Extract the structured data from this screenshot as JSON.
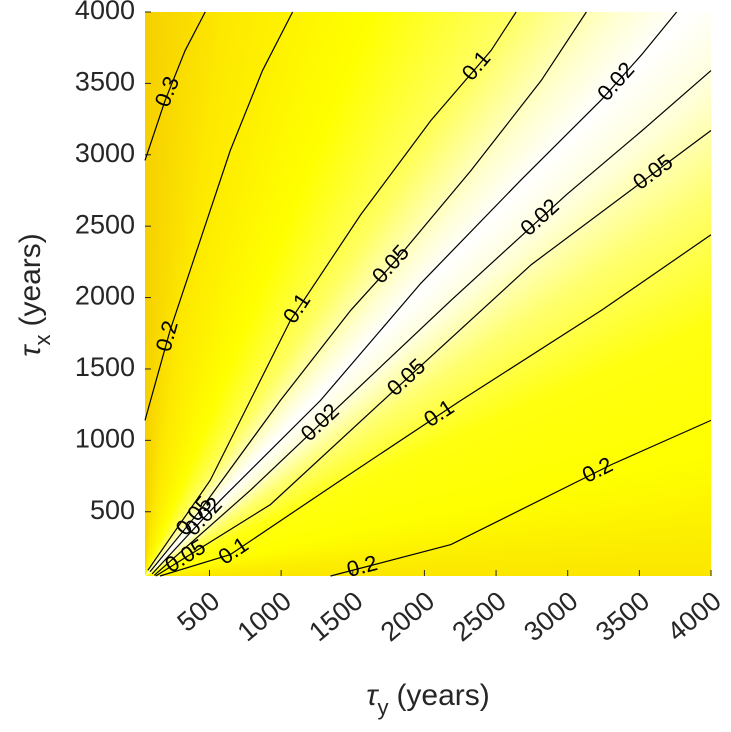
{
  "chart_data": {
    "type": "contour",
    "x_label": {
      "symbol": "τ",
      "subscript": "y",
      "unit": "(years)"
    },
    "y_label": {
      "symbol": "τ",
      "subscript": "x",
      "unit": "(years)"
    },
    "xlim": [
      50,
      4000
    ],
    "ylim": [
      50,
      4000
    ],
    "xticks": [
      500,
      1000,
      1500,
      2000,
      2500,
      3000,
      3500,
      4000
    ],
    "yticks": [
      500,
      1000,
      1500,
      2000,
      2500,
      3000,
      3500,
      4000
    ],
    "line_color": "#000000",
    "contours": [
      {
        "level": 0.3,
        "x": [
          50,
          190,
          330,
          470
        ],
        "y": [
          2960,
          3380,
          3730,
          4000
        ]
      },
      {
        "level": 0.2,
        "x": [
          50,
          225,
          435,
          645,
          870,
          1080
        ],
        "y": [
          1140,
          1770,
          2400,
          3030,
          3590,
          4000
        ]
      },
      {
        "level": 0.1,
        "x": [
          70,
          505,
          1065,
          1555,
          2045,
          2465,
          2640
        ],
        "y": [
          90,
          720,
          1840,
          2580,
          3240,
          3730,
          4000
        ]
      },
      {
        "level": 0.05,
        "x": [
          85,
          435,
          995,
          1485,
          1800,
          2325,
          2815,
          3130
        ],
        "y": [
          80,
          510,
          1280,
          1910,
          2260,
          2890,
          3520,
          4000
        ]
      },
      {
        "level": 0.02,
        "x": [
          100,
          575,
          1275,
          1975,
          2675,
          3235,
          3515,
          3760
        ],
        "y": [
          65,
          580,
          1280,
          2100,
          2825,
          3385,
          3700,
          4000
        ]
      },
      {
        "level": 0.02,
        "x": [
          115,
          785,
          1415,
          2185,
          2990,
          3520,
          4000
        ],
        "y": [
          55,
          650,
          1250,
          1980,
          2720,
          3170,
          3590
        ]
      },
      {
        "level": 0.05,
        "x": [
          125,
          925,
          1940,
          2745,
          3585,
          4000
        ],
        "y": [
          50,
          550,
          1490,
          2230,
          2860,
          3170
        ]
      },
      {
        "level": 0.1,
        "x": [
          155,
          645,
          1415,
          2255,
          3235,
          4000
        ],
        "y": [
          50,
          200,
          720,
          1280,
          1910,
          2440
        ]
      },
      {
        "level": 0.2,
        "x": [
          1345,
          2185,
          3305,
          4000
        ],
        "y": [
          50,
          270,
          830,
          1140
        ]
      }
    ]
  }
}
